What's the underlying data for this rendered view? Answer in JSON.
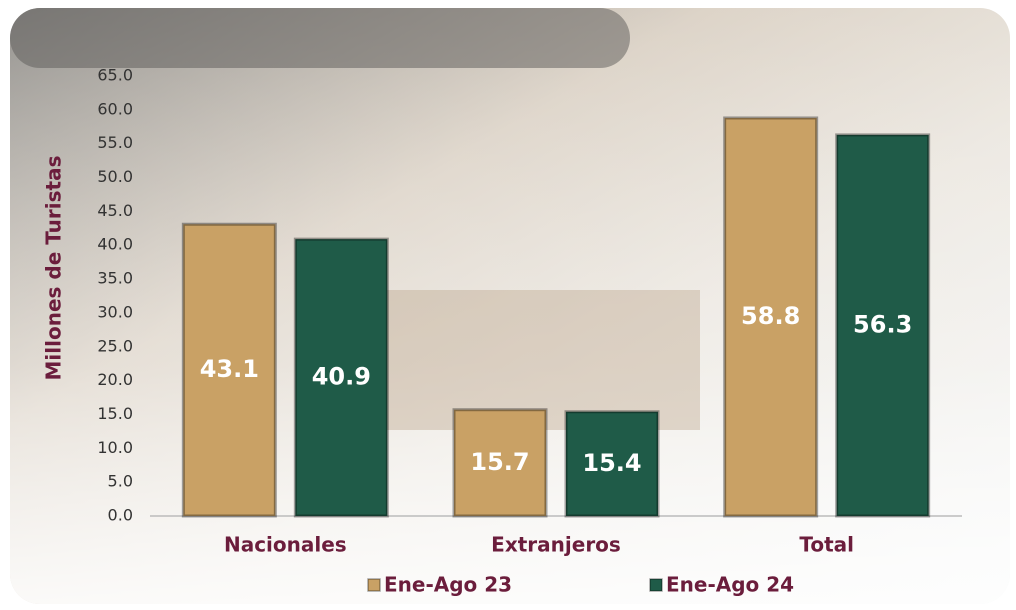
{
  "chart_data": {
    "type": "bar",
    "y_label": "Millones de Turistas",
    "categories": [
      "Nacionales",
      "Extranjeros",
      "Total"
    ],
    "series": [
      {
        "name": "Ene-Ago 23",
        "color": "#c9a165",
        "values": [
          43.1,
          15.7,
          58.8
        ]
      },
      {
        "name": "Ene-Ago 24",
        "color": "#1f5b48",
        "values": [
          40.9,
          15.4,
          56.3
        ]
      }
    ],
    "ylim": [
      0,
      65
    ],
    "yticks": [
      {
        "value": 0,
        "label": "0.0"
      },
      {
        "value": 5,
        "label": "5.0"
      },
      {
        "value": 10,
        "label": "10.0"
      },
      {
        "value": 15,
        "label": "15.0"
      },
      {
        "value": 20,
        "label": "20.0"
      },
      {
        "value": 25,
        "label": "25.0"
      },
      {
        "value": 30,
        "label": "30.0"
      },
      {
        "value": 35,
        "label": "35.0"
      },
      {
        "value": 40,
        "label": "40.0"
      },
      {
        "value": 45,
        "label": "45.0"
      },
      {
        "value": 50,
        "label": "50.0"
      },
      {
        "value": 55,
        "label": "55.0"
      },
      {
        "value": 60,
        "label": "60.0"
      },
      {
        "value": 65,
        "label": "65.0"
      }
    ],
    "legend": "bottom"
  }
}
